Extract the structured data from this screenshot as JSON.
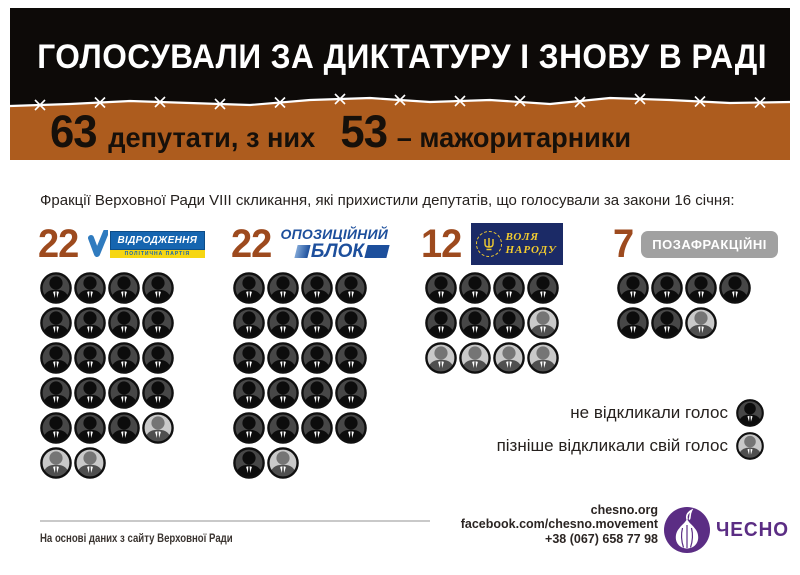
{
  "banner": {
    "title": "ГОЛОСУВАЛИ ЗА ДИКТАТУРУ І ЗНОВУ В РАДІ",
    "stat1_number": "63",
    "stat1_label": "депутати, з них",
    "stat2_number": "53",
    "stat2_label": "– мажоритарники"
  },
  "subtitle": "Фракції Верховної Ради VIII скликання, які прихистили депутатів, що голосували за закони 16 січня:",
  "factions": [
    {
      "name": "Відродження",
      "count": "22",
      "logo_line1": "ВІДРОДЖЕННЯ",
      "logo_line2": "ПОЛІТИЧНА ПАРТІЯ",
      "per_row": 4,
      "icons": [
        "kept",
        "kept",
        "kept",
        "kept",
        "kept",
        "kept",
        "kept",
        "kept",
        "kept",
        "kept",
        "kept",
        "kept",
        "kept",
        "kept",
        "kept",
        "kept",
        "kept",
        "kept",
        "kept",
        "recalled",
        "recalled",
        "recalled"
      ]
    },
    {
      "name": "Опозиційний блок",
      "count": "22",
      "logo_line1": "ОПОЗИЦІЙНИЙ",
      "logo_line2": "БЛОК",
      "per_row": 4,
      "icons": [
        "kept",
        "kept",
        "kept",
        "kept",
        "kept",
        "kept",
        "kept",
        "kept",
        "kept",
        "kept",
        "kept",
        "kept",
        "kept",
        "kept",
        "kept",
        "kept",
        "kept",
        "kept",
        "kept",
        "kept",
        "kept",
        "recalled"
      ]
    },
    {
      "name": "Воля народу",
      "count": "12",
      "logo_line1": "ВОЛЯ",
      "logo_line2": "НАРОДУ",
      "per_row": 4,
      "icons": [
        "kept",
        "kept",
        "kept",
        "kept",
        "kept",
        "kept",
        "kept",
        "recalled",
        "recalled",
        "recalled",
        "recalled",
        "recalled"
      ]
    },
    {
      "name": "Позафракційні",
      "count": "7",
      "logo_line1": "ПОЗАФРАКЦІЙНІ",
      "logo_line2": "",
      "per_row": 4,
      "icons": [
        "kept",
        "kept",
        "kept",
        "kept",
        "kept",
        "kept",
        "recalled"
      ]
    }
  ],
  "legend": [
    {
      "label": "не відкликали голос",
      "status": "kept"
    },
    {
      "label": "пізніше відкликали свій голос",
      "status": "recalled"
    }
  ],
  "footer": {
    "source": "На основі даних з сайту Верховної Ради",
    "site": "chesno.org",
    "facebook": "facebook.com/chesno.movement",
    "phone": "+38 (067) 658 77 98",
    "org_name": "ЧЕСНО"
  },
  "colors": {
    "banner_black": "#0d0a08",
    "banner_brown": "#ad5c1e",
    "count_rust": "#9d4a1e",
    "icon_kept_bg": "#474747",
    "icon_kept_figure": "#0c0c0c",
    "icon_recalled_bg": "#c9c9c9",
    "icon_recalled_head": "#757575",
    "icon_recalled_body": "#4f4f4f",
    "chesno_purple": "#5b2d84",
    "vidrodzhennya_blue": "#1565b0",
    "vidrodzhennya_yellow": "#f6d612",
    "opposition_blue": "#1d4f9c",
    "volya_navy": "#1b2a66",
    "volya_yellow": "#f3cc2f",
    "poza_gray": "#a1a1a1"
  },
  "chart_data": {
    "type": "pictogram",
    "title": "ГОЛОСУВАЛИ ЗА ДИКТАТУРУ І ЗНОВУ В РАДІ",
    "subtitle": "Фракції Верховної Ради VIII скликання, які прихистили депутатів, що голосували за закони 16 січня:",
    "total_deputies": 63,
    "majoritarian_deputies": 53,
    "categories": [
      "Відродження",
      "Опозиційний блок",
      "Воля народу",
      "Позафракційні"
    ],
    "totals": [
      22,
      22,
      12,
      7
    ],
    "series": [
      {
        "name": "не відкликали голос",
        "values": [
          19,
          21,
          7,
          6
        ]
      },
      {
        "name": "пізніше відкликали свій голос",
        "values": [
          3,
          1,
          5,
          1
        ]
      }
    ],
    "legend_position": "right",
    "unit": "деputат-іконка = 1 депутат"
  }
}
